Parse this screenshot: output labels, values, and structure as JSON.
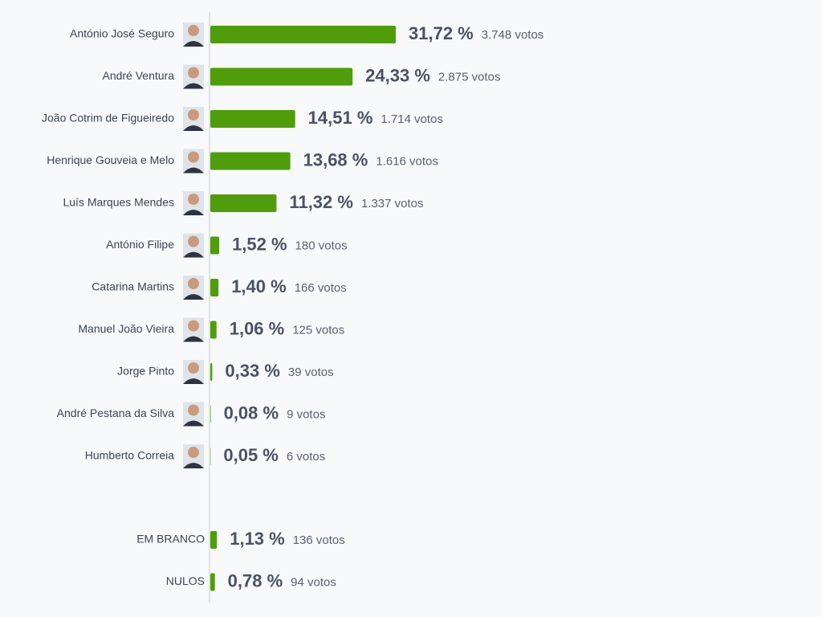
{
  "chart_data": [
    {
      "type": "bar",
      "orientation": "horizontal",
      "color": "#4f9d0a",
      "categories": [
        "António José Seguro",
        "André Ventura",
        "João Cotrim de Figueiredo",
        "Henrique Gouveia e Melo",
        "Luís Marques Mendes",
        "António Filipe",
        "Catarina Martins",
        "Manuel João Vieira",
        "Jorge Pinto",
        "André Pestana da Silva",
        "Humberto Correia"
      ],
      "values": [
        31.72,
        24.33,
        14.51,
        13.68,
        11.32,
        1.52,
        1.4,
        1.06,
        0.33,
        0.08,
        0.05
      ],
      "value_labels": [
        "31,72 %",
        "24,33 %",
        "14,51 %",
        "13,68 %",
        "11,32 %",
        "1,52 %",
        "1,40 %",
        "1,06 %",
        "0,33 %",
        "0,08 %",
        "0,05 %"
      ],
      "votes": [
        {
          "value": 3748,
          "label": "3.748 votos"
        },
        {
          "value": 2875,
          "label": "2.875 votos"
        },
        {
          "value": 1714,
          "label": "1.714 votos"
        },
        {
          "value": 1616,
          "label": "1.616 votos"
        },
        {
          "value": 1337,
          "label": "1.337 votos"
        },
        {
          "value": 180,
          "label": "180 votos"
        },
        {
          "value": 166,
          "label": "166 votos"
        },
        {
          "value": 125,
          "label": "125 votos"
        },
        {
          "value": 39,
          "label": "39 votos"
        },
        {
          "value": 9,
          "label": "9 votos"
        },
        {
          "value": 6,
          "label": "6 votos"
        }
      ]
    },
    {
      "type": "bar",
      "orientation": "horizontal",
      "color": "#4f9d0a",
      "categories": [
        "EM BRANCO",
        "NULOS"
      ],
      "values": [
        1.13,
        0.78
      ],
      "value_labels": [
        "1,13 %",
        "0,78 %"
      ],
      "votes": [
        {
          "value": 136,
          "label": "136 votos"
        },
        {
          "value": 94,
          "label": "94 votos"
        }
      ]
    }
  ]
}
